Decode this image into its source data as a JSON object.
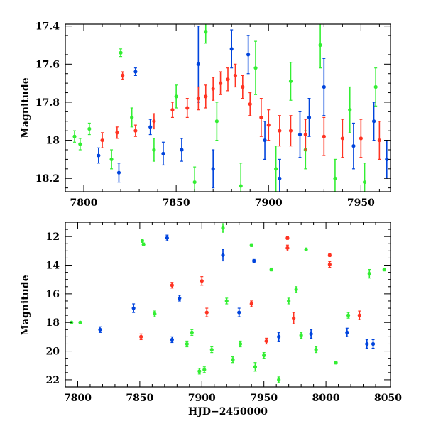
{
  "chart_data": [
    {
      "type": "scatter",
      "title": "",
      "xlabel": "",
      "ylabel": "Magnitude",
      "xlim": [
        7790,
        7966
      ],
      "ylim": [
        18.27,
        17.39
      ],
      "y_inverted": true,
      "grid": false,
      "legend": "none",
      "x_ticks": [
        7800,
        7850,
        7900,
        7950
      ],
      "y_ticks": [
        17.4,
        17.6,
        17.8,
        18,
        18.2
      ],
      "y_tick_labels": [
        "17.4",
        "17.6",
        "17.8",
        "18",
        "18.2"
      ],
      "series_colors": [
        "#33ee33",
        "#0044dd",
        "#ff3322"
      ],
      "series": [
        {
          "color": "#33ee33",
          "points": [
            {
              "x": 7795,
              "y": 17.98,
              "err": 0.03
            },
            {
              "x": 7798,
              "y": 18.02,
              "err": 0.03
            },
            {
              "x": 7803,
              "y": 17.94,
              "err": 0.03
            },
            {
              "x": 7820,
              "y": 17.54,
              "err": 0.02
            },
            {
              "x": 7815,
              "y": 18.1,
              "err": 0.05
            },
            {
              "x": 7826,
              "y": 17.88,
              "err": 0.05
            },
            {
              "x": 7838,
              "y": 18.05,
              "err": 0.06
            },
            {
              "x": 7850,
              "y": 17.77,
              "err": 0.06
            },
            {
              "x": 7860,
              "y": 18.22,
              "err": 0.08
            },
            {
              "x": 7866,
              "y": 17.43,
              "err": 0.06
            },
            {
              "x": 7872,
              "y": 17.9,
              "err": 0.1
            },
            {
              "x": 7885,
              "y": 18.24,
              "err": 0.12
            },
            {
              "x": 7893,
              "y": 17.62,
              "err": 0.14
            },
            {
              "x": 7904,
              "y": 18.15,
              "err": 0.12
            },
            {
              "x": 7912,
              "y": 17.69,
              "err": 0.1
            },
            {
              "x": 7920,
              "y": 18.05,
              "err": 0.1
            },
            {
              "x": 7928,
              "y": 17.5,
              "err": 0.12
            },
            {
              "x": 7936,
              "y": 18.2,
              "err": 0.1
            },
            {
              "x": 7944,
              "y": 17.84,
              "err": 0.12
            },
            {
              "x": 7952,
              "y": 18.22,
              "err": 0.1
            },
            {
              "x": 7958,
              "y": 17.72,
              "err": 0.1
            }
          ]
        },
        {
          "color": "#0044dd",
          "points": [
            {
              "x": 7808,
              "y": 18.08,
              "err": 0.04
            },
            {
              "x": 7819,
              "y": 18.17,
              "err": 0.05
            },
            {
              "x": 7828,
              "y": 17.64,
              "err": 0.02
            },
            {
              "x": 7836,
              "y": 17.93,
              "err": 0.04
            },
            {
              "x": 7843,
              "y": 18.07,
              "err": 0.06
            },
            {
              "x": 7853,
              "y": 18.05,
              "err": 0.06
            },
            {
              "x": 7862,
              "y": 17.6,
              "err": 0.2
            },
            {
              "x": 7870,
              "y": 18.15,
              "err": 0.1
            },
            {
              "x": 7880,
              "y": 17.52,
              "err": 0.1
            },
            {
              "x": 7889,
              "y": 17.55,
              "err": 0.1
            },
            {
              "x": 7898,
              "y": 18.0,
              "err": 0.1
            },
            {
              "x": 7906,
              "y": 18.2,
              "err": 0.1
            },
            {
              "x": 7917,
              "y": 17.97,
              "err": 0.12
            },
            {
              "x": 7922,
              "y": 17.88,
              "err": 0.1
            },
            {
              "x": 7930,
              "y": 17.72,
              "err": 0.15
            },
            {
              "x": 7946,
              "y": 18.03,
              "err": 0.12
            },
            {
              "x": 7957,
              "y": 17.9,
              "err": 0.1
            },
            {
              "x": 7964,
              "y": 18.1,
              "err": 0.1
            }
          ]
        },
        {
          "color": "#ff3322",
          "points": [
            {
              "x": 7821,
              "y": 17.66,
              "err": 0.02
            },
            {
              "x": 7810,
              "y": 18.0,
              "err": 0.04
            },
            {
              "x": 7818,
              "y": 17.96,
              "err": 0.03
            },
            {
              "x": 7828,
              "y": 17.95,
              "err": 0.03
            },
            {
              "x": 7838,
              "y": 17.9,
              "err": 0.04
            },
            {
              "x": 7848,
              "y": 17.84,
              "err": 0.04
            },
            {
              "x": 7856,
              "y": 17.83,
              "err": 0.05
            },
            {
              "x": 7862,
              "y": 17.78,
              "err": 0.06
            },
            {
              "x": 7866,
              "y": 17.77,
              "err": 0.06
            },
            {
              "x": 7870,
              "y": 17.73,
              "err": 0.06
            },
            {
              "x": 7874,
              "y": 17.7,
              "err": 0.06
            },
            {
              "x": 7878,
              "y": 17.68,
              "err": 0.06
            },
            {
              "x": 7882,
              "y": 17.66,
              "err": 0.06
            },
            {
              "x": 7886,
              "y": 17.72,
              "err": 0.06
            },
            {
              "x": 7890,
              "y": 17.81,
              "err": 0.06
            },
            {
              "x": 7896,
              "y": 17.88,
              "err": 0.1
            },
            {
              "x": 7900,
              "y": 17.92,
              "err": 0.08
            },
            {
              "x": 7906,
              "y": 17.95,
              "err": 0.08
            },
            {
              "x": 7912,
              "y": 17.95,
              "err": 0.08
            },
            {
              "x": 7920,
              "y": 17.97,
              "err": 0.08
            },
            {
              "x": 7930,
              "y": 17.98,
              "err": 0.1
            },
            {
              "x": 7940,
              "y": 17.99,
              "err": 0.1
            },
            {
              "x": 7950,
              "y": 17.99,
              "err": 0.1
            },
            {
              "x": 7960,
              "y": 18.0,
              "err": 0.1
            }
          ]
        }
      ]
    },
    {
      "type": "scatter",
      "title": "",
      "xlabel": "HJD−2450000",
      "ylabel": "Magnitude",
      "xlim": [
        7790,
        8052
      ],
      "ylim": [
        22.5,
        11.0
      ],
      "y_inverted": true,
      "grid": false,
      "legend": "none",
      "x_ticks": [
        7800,
        7850,
        7900,
        7950,
        8000,
        8050
      ],
      "y_ticks": [
        12,
        14,
        16,
        18,
        20,
        22
      ],
      "y_tick_labels": [
        "12",
        "14",
        "16",
        "18",
        "20",
        "22"
      ],
      "series_colors": [
        "#33ee33",
        "#0044dd",
        "#ff3322"
      ],
      "series": [
        {
          "color": "#33ee33",
          "points": [
            {
              "x": 7795,
              "y": 18.0,
              "err": 0.05
            },
            {
              "x": 7802,
              "y": 18.0,
              "err": 0.05
            },
            {
              "x": 7852,
              "y": 12.3,
              "err": 0.1
            },
            {
              "x": 7853,
              "y": 12.55,
              "err": 0.1
            },
            {
              "x": 7862,
              "y": 17.4,
              "err": 0.2
            },
            {
              "x": 7888,
              "y": 19.5,
              "err": 0.2
            },
            {
              "x": 7892,
              "y": 18.7,
              "err": 0.2
            },
            {
              "x": 7898,
              "y": 21.4,
              "err": 0.2
            },
            {
              "x": 7902,
              "y": 21.3,
              "err": 0.2
            },
            {
              "x": 7908,
              "y": 19.9,
              "err": 0.2
            },
            {
              "x": 7917,
              "y": 11.4,
              "err": 0.3
            },
            {
              "x": 7920,
              "y": 16.5,
              "err": 0.2
            },
            {
              "x": 7925,
              "y": 20.6,
              "err": 0.2
            },
            {
              "x": 7931,
              "y": 19.5,
              "err": 0.2
            },
            {
              "x": 7940,
              "y": 12.6,
              "err": 0.1
            },
            {
              "x": 7943,
              "y": 21.1,
              "err": 0.3
            },
            {
              "x": 7950,
              "y": 20.3,
              "err": 0.2
            },
            {
              "x": 7956,
              "y": 14.3,
              "err": 0.1
            },
            {
              "x": 7962,
              "y": 22.0,
              "err": 0.2
            },
            {
              "x": 7970,
              "y": 16.5,
              "err": 0.2
            },
            {
              "x": 7976,
              "y": 15.7,
              "err": 0.2
            },
            {
              "x": 7980,
              "y": 18.9,
              "err": 0.2
            },
            {
              "x": 7984,
              "y": 12.9,
              "err": 0.1
            },
            {
              "x": 7992,
              "y": 19.9,
              "err": 0.2
            },
            {
              "x": 8008,
              "y": 20.8,
              "err": 0.1
            },
            {
              "x": 8018,
              "y": 17.5,
              "err": 0.2
            },
            {
              "x": 8035,
              "y": 14.6,
              "err": 0.3
            },
            {
              "x": 8047,
              "y": 14.3,
              "err": 0.1
            }
          ]
        },
        {
          "color": "#0044dd",
          "points": [
            {
              "x": 7818,
              "y": 18.5,
              "err": 0.2
            },
            {
              "x": 7845,
              "y": 17.0,
              "err": 0.3
            },
            {
              "x": 7872,
              "y": 12.1,
              "err": 0.2
            },
            {
              "x": 7882,
              "y": 16.3,
              "err": 0.2
            },
            {
              "x": 7876,
              "y": 19.2,
              "err": 0.2
            },
            {
              "x": 7917,
              "y": 13.3,
              "err": 0.4
            },
            {
              "x": 7930,
              "y": 17.3,
              "err": 0.3
            },
            {
              "x": 7942,
              "y": 13.7,
              "err": 0.1
            },
            {
              "x": 7962,
              "y": 19.0,
              "err": 0.3
            },
            {
              "x": 7988,
              "y": 18.8,
              "err": 0.3
            },
            {
              "x": 8017,
              "y": 18.7,
              "err": 0.3
            },
            {
              "x": 8033,
              "y": 19.5,
              "err": 0.3
            },
            {
              "x": 8038,
              "y": 19.5,
              "err": 0.3
            }
          ]
        },
        {
          "color": "#ff3322",
          "points": [
            {
              "x": 7876,
              "y": 15.4,
              "err": 0.2
            },
            {
              "x": 7900,
              "y": 15.1,
              "err": 0.3
            },
            {
              "x": 7904,
              "y": 17.3,
              "err": 0.3
            },
            {
              "x": 7940,
              "y": 16.7,
              "err": 0.2
            },
            {
              "x": 7952,
              "y": 19.3,
              "err": 0.2
            },
            {
              "x": 7969,
              "y": 12.1,
              "err": 0.1
            },
            {
              "x": 7969,
              "y": 12.8,
              "err": 0.2
            },
            {
              "x": 7974,
              "y": 17.7,
              "err": 0.4
            },
            {
              "x": 8003,
              "y": 13.3,
              "err": 0.1
            },
            {
              "x": 8003,
              "y": 13.95,
              "err": 0.2
            },
            {
              "x": 8027,
              "y": 17.5,
              "err": 0.3
            },
            {
              "x": 7851,
              "y": 19.0,
              "err": 0.2
            }
          ]
        }
      ]
    }
  ]
}
